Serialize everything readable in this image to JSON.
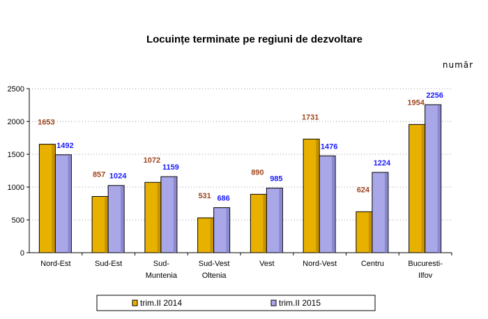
{
  "colors": {
    "series_2014": "#e8b100",
    "series_2014_dark": "#b88600",
    "series_2015": "#a9a7e8",
    "series_2015_dark": "#7d7bc4",
    "label_2014": "#a0451f",
    "label_2015": "#1a1aff"
  },
  "chart_data": {
    "type": "bar",
    "title": "Locuințe terminate pe regiuni de dezvoltare",
    "unit": "număr",
    "categories": [
      [
        "Nord-Est"
      ],
      [
        "Sud-Est"
      ],
      [
        "Sud-",
        "Muntenia"
      ],
      [
        "Sud-Vest",
        "Oltenia"
      ],
      [
        "Vest"
      ],
      [
        "Nord-Vest"
      ],
      [
        "Centru"
      ],
      [
        "Bucuresti-",
        "Ilfov"
      ]
    ],
    "series": [
      {
        "name": "trim.II 2014",
        "values": [
          1653,
          857,
          1072,
          531,
          890,
          1731,
          624,
          1954
        ]
      },
      {
        "name": "trim.II 2015",
        "values": [
          1492,
          1024,
          1159,
          686,
          985,
          1476,
          1224,
          2256
        ]
      }
    ],
    "ylim": [
      0,
      2500
    ],
    "yticks": [
      0,
      500,
      1000,
      1500,
      2000,
      2500
    ],
    "grid": true,
    "legend_position": "bottom",
    "bar_style": "3d"
  }
}
